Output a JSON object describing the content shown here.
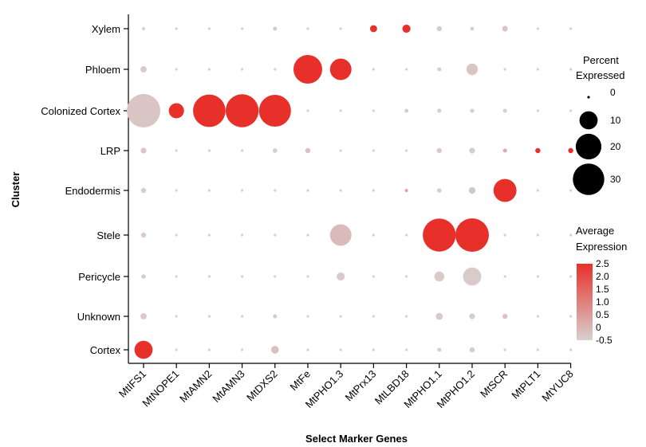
{
  "chart_data": {
    "type": "dot",
    "xlabel": "Select Marker Genes",
    "ylabel": "Cluster",
    "genes": [
      "MtIFS1",
      "MtNOPE1",
      "MtAMN2",
      "MtAMN3",
      "MtDXS2",
      "MtFe",
      "MtPHO1.3",
      "MtPrx13",
      "MtLBD18",
      "MtPHO1.1",
      "MtPHO1.2",
      "MtSCR",
      "MtPLT1",
      "MtYUC8"
    ],
    "clusters": [
      "Xylem",
      "Phloem",
      "Colonized Cortex",
      "LRP",
      "Endodermis",
      "Stele",
      "Pericycle",
      "Unknown",
      "Cortex"
    ],
    "percent_expressed": [
      [
        0.3,
        0.2,
        0.2,
        0.2,
        0.5,
        0.2,
        0.2,
        1.5,
        2,
        0.8,
        0.4,
        1,
        0.2,
        0.2
      ],
      [
        1.2,
        0.2,
        0.2,
        0.2,
        0.2,
        25,
        14,
        0.2,
        0.2,
        0.5,
        4,
        0.2,
        0.2,
        0.2
      ],
      [
        34,
        7,
        32,
        33,
        31,
        0.2,
        0.2,
        0.2,
        0.5,
        0.5,
        0.5,
        0.5,
        0.2,
        0.2
      ],
      [
        1,
        0.2,
        0.2,
        0.2,
        0.6,
        0.8,
        0.2,
        0.2,
        0.2,
        0.8,
        1,
        0.5,
        0.8,
        0.8
      ],
      [
        0.8,
        0.2,
        0.2,
        0.2,
        0.2,
        0.2,
        0.2,
        0.2,
        0.3,
        0.6,
        1.3,
        16,
        0.2,
        0.2
      ],
      [
        0.8,
        0.2,
        0.2,
        0.2,
        0.2,
        0.2,
        14,
        0.2,
        0.2,
        33,
        34,
        0.2,
        0.2,
        0.2
      ],
      [
        0.6,
        0.2,
        0.2,
        0.2,
        0.2,
        0.2,
        2,
        0.2,
        0.2,
        3,
        10,
        0.2,
        0.2,
        0.2
      ],
      [
        1.2,
        0.2,
        0.2,
        0.2,
        0.5,
        0.2,
        0.2,
        0.2,
        0.2,
        1.5,
        1,
        0.8,
        0.2,
        0.2
      ],
      [
        10,
        0.2,
        0.2,
        0.2,
        1.8,
        0.2,
        0.2,
        0.2,
        0.2,
        0.5,
        0.8,
        0.2,
        0.2,
        0.2
      ]
    ],
    "average_expression": [
      [
        -0.5,
        -0.5,
        -0.5,
        -0.5,
        -0.4,
        -0.5,
        -0.5,
        2.5,
        2.5,
        -0.4,
        -0.4,
        -0.3,
        -0.5,
        -0.5
      ],
      [
        -0.4,
        -0.5,
        -0.5,
        -0.5,
        -0.5,
        2.5,
        2.5,
        -0.5,
        -0.5,
        -0.4,
        -0.3,
        -0.5,
        -0.5,
        -0.5
      ],
      [
        -0.3,
        2.5,
        2.5,
        2.5,
        2.5,
        -0.5,
        -0.5,
        -0.5,
        -0.4,
        -0.4,
        -0.4,
        -0.4,
        -0.5,
        -0.5
      ],
      [
        -0.3,
        -0.5,
        -0.5,
        -0.5,
        -0.4,
        -0.2,
        -0.5,
        -0.5,
        -0.5,
        -0.4,
        -0.4,
        0.2,
        2.5,
        2.5
      ],
      [
        -0.4,
        -0.5,
        -0.5,
        -0.5,
        -0.5,
        -0.5,
        -0.5,
        -0.5,
        0.4,
        -0.4,
        -0.3,
        2.5,
        -0.5,
        -0.5
      ],
      [
        -0.4,
        -0.5,
        -0.5,
        -0.5,
        -0.5,
        -0.5,
        -0.1,
        -0.5,
        -0.5,
        2.5,
        2.5,
        -0.5,
        -0.5,
        -0.5
      ],
      [
        -0.4,
        -0.5,
        -0.5,
        -0.5,
        -0.5,
        -0.5,
        -0.4,
        -0.5,
        -0.5,
        -0.4,
        -0.4,
        -0.5,
        -0.5,
        -0.5
      ],
      [
        -0.4,
        -0.5,
        -0.5,
        -0.5,
        -0.4,
        -0.5,
        -0.5,
        -0.5,
        -0.5,
        -0.4,
        -0.4,
        -0.3,
        -0.5,
        -0.5
      ],
      [
        2.5,
        -0.5,
        -0.5,
        -0.5,
        -0.2,
        -0.5,
        -0.5,
        -0.5,
        -0.5,
        -0.4,
        -0.4,
        -0.5,
        -0.5,
        -0.5
      ]
    ],
    "size_legend": {
      "title_lines": [
        "Percent",
        "Expressed"
      ],
      "values": [
        0,
        10,
        20,
        30
      ],
      "labels": [
        "0",
        "10",
        "20",
        "30"
      ]
    },
    "color_legend": {
      "title_lines": [
        "Average",
        "Expression"
      ],
      "range": [
        -0.5,
        2.5
      ],
      "ticks": [
        2.5,
        2.0,
        1.5,
        1.0,
        0.5,
        0,
        -0.5
      ],
      "labels": [
        "2.5",
        "2.0",
        "1.5",
        "1.0",
        "0.5",
        "0",
        "-0.5"
      ],
      "low_color": "#d8d0cf",
      "high_color": "#e8302a"
    },
    "grid": false,
    "legend_position": "right"
  }
}
